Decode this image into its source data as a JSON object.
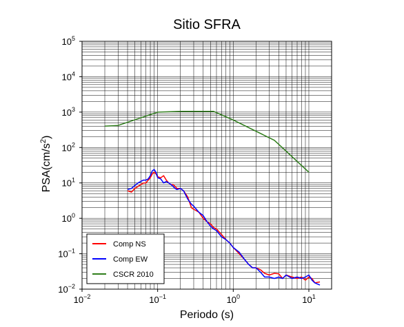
{
  "chart_data": {
    "type": "line",
    "title": "Sitio SFRA",
    "xlabel": "Periodo (s)",
    "ylabel_prefix": "PSA(cm/s",
    "ylabel_sup": "2",
    "ylabel_suffix": ")",
    "x_scale": "log",
    "y_scale": "log",
    "xlim": [
      0.01,
      20
    ],
    "ylim": [
      0.01,
      100000
    ],
    "grid": true,
    "legend_position": "bottom-left",
    "x_ticks": [
      {
        "value": 0.01,
        "base": "10",
        "exp": "−2"
      },
      {
        "value": 0.1,
        "base": "10",
        "exp": "−1"
      },
      {
        "value": 1,
        "base": "10",
        "exp": "0"
      },
      {
        "value": 10,
        "base": "10",
        "exp": "1"
      }
    ],
    "y_ticks": [
      {
        "value": 0.01,
        "base": "10",
        "exp": "−2"
      },
      {
        "value": 0.1,
        "base": "10",
        "exp": "−1"
      },
      {
        "value": 1,
        "base": "10",
        "exp": "0"
      },
      {
        "value": 10,
        "base": "10",
        "exp": "1"
      },
      {
        "value": 100,
        "base": "10",
        "exp": "2"
      },
      {
        "value": 1000,
        "base": "10",
        "exp": "3"
      },
      {
        "value": 10000,
        "base": "10",
        "exp": "4"
      },
      {
        "value": 100000,
        "base": "10",
        "exp": "5"
      }
    ],
    "series": [
      {
        "name": "Comp NS",
        "color": "#ff0000",
        "x": [
          0.04,
          0.045,
          0.05,
          0.055,
          0.06,
          0.065,
          0.07,
          0.075,
          0.08,
          0.085,
          0.09,
          0.095,
          0.1,
          0.11,
          0.12,
          0.13,
          0.14,
          0.15,
          0.16,
          0.17,
          0.18,
          0.2,
          0.22,
          0.25,
          0.28,
          0.3,
          0.35,
          0.4,
          0.45,
          0.5,
          0.55,
          0.6,
          0.7,
          0.8,
          0.9,
          1.0,
          1.2,
          1.4,
          1.6,
          1.8,
          2.0,
          2.3,
          2.6,
          3.0,
          3.5,
          4.0,
          4.5,
          5.0,
          6.0,
          7.0,
          8.0,
          9.0,
          10.0,
          11.0,
          12.0,
          14.0
        ],
        "y": [
          6,
          5.5,
          7,
          8,
          9,
          10,
          10,
          12,
          14,
          18,
          20,
          18,
          15,
          14,
          16,
          12,
          10,
          9,
          9,
          8,
          7,
          7,
          6,
          4,
          2,
          1.8,
          1.5,
          1.0,
          0.8,
          0.7,
          0.55,
          0.5,
          0.35,
          0.25,
          0.2,
          0.15,
          0.1,
          0.07,
          0.05,
          0.04,
          0.04,
          0.035,
          0.028,
          0.025,
          0.028,
          0.027,
          0.02,
          0.025,
          0.022,
          0.02,
          0.022,
          0.018,
          0.022,
          0.02,
          0.015,
          0.016
        ]
      },
      {
        "name": "Comp EW",
        "color": "#0000ff",
        "x": [
          0.04,
          0.045,
          0.05,
          0.055,
          0.06,
          0.065,
          0.07,
          0.075,
          0.08,
          0.085,
          0.09,
          0.095,
          0.1,
          0.11,
          0.12,
          0.13,
          0.14,
          0.15,
          0.16,
          0.17,
          0.18,
          0.2,
          0.22,
          0.25,
          0.28,
          0.3,
          0.35,
          0.4,
          0.45,
          0.5,
          0.55,
          0.6,
          0.7,
          0.8,
          0.9,
          1.0,
          1.2,
          1.4,
          1.6,
          1.8,
          2.0,
          2.3,
          2.6,
          3.0,
          3.5,
          4.0,
          4.5,
          5.0,
          6.0,
          7.0,
          8.0,
          9.0,
          10.0,
          11.0,
          12.0,
          14.0
        ],
        "y": [
          6.5,
          7,
          8.5,
          10,
          11,
          12,
          12,
          13,
          16,
          22,
          24,
          20,
          14,
          13,
          10,
          11,
          10,
          9,
          8,
          7,
          6.5,
          7,
          6,
          3.5,
          2.5,
          2.2,
          1.5,
          1.2,
          0.8,
          0.6,
          0.5,
          0.45,
          0.3,
          0.25,
          0.2,
          0.15,
          0.11,
          0.07,
          0.05,
          0.04,
          0.04,
          0.03,
          0.022,
          0.022,
          0.02,
          0.022,
          0.02,
          0.025,
          0.02,
          0.022,
          0.02,
          0.022,
          0.025,
          0.018,
          0.015,
          0.013
        ]
      },
      {
        "name": "CSCR 2010",
        "color": "#2e7d1a",
        "x": [
          0.02,
          0.03,
          0.1,
          0.2,
          0.55,
          1.0,
          3.5,
          10.0
        ],
        "y": [
          400,
          420,
          1000,
          1050,
          1050,
          600,
          160,
          20
        ]
      }
    ]
  }
}
